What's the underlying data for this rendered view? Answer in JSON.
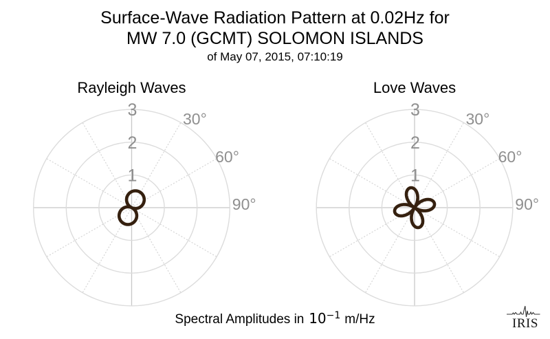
{
  "header": {
    "title_line1": "Surface-Wave Radiation Pattern at 0.02Hz for",
    "title_line2": "MW 7.0 (GCMT) SOLOMON ISLANDS",
    "subtitle": "of May 07, 2015, 07:10:19"
  },
  "caption": {
    "prefix": "Spectral Amplitudes in",
    "math_base": "10",
    "math_exponent": "−1",
    "suffix": "m/Hz"
  },
  "logo": {
    "text": "IRIS"
  },
  "colors": {
    "title": "#000000",
    "grid_circle": "#dcdcdc",
    "grid_axis": "#c8c8c8",
    "grid_dotted": "#d4d4d4",
    "tick_label": "#8f8f8f",
    "pattern_stroke": "#35200f"
  },
  "chart_data": [
    {
      "type": "line",
      "projection": "polar",
      "title": "Rayleigh Waves",
      "r_ticks": [
        1,
        2,
        3
      ],
      "r_tick_labels": [
        "1",
        "2",
        "3"
      ],
      "r_max": 3,
      "theta_grid_step_deg": 30,
      "theta_tick_labels": [
        {
          "angle_deg": 30,
          "label": "30°"
        },
        {
          "angle_deg": 60,
          "label": "60°"
        },
        {
          "angle_deg": 90,
          "label": "90°"
        }
      ],
      "pattern": {
        "shape": "rose r = A·|cos(k·(θ−θ0))|",
        "num_lobes": 2,
        "peak_amplitude": 0.54,
        "lobe_axis_azimuth_deg": 25
      }
    },
    {
      "type": "line",
      "projection": "polar",
      "title": "Love Waves",
      "r_ticks": [
        1,
        2,
        3
      ],
      "r_tick_labels": [
        "1",
        "2",
        "3"
      ],
      "r_max": 3,
      "theta_grid_step_deg": 30,
      "theta_tick_labels": [
        {
          "angle_deg": 30,
          "label": "30°"
        },
        {
          "angle_deg": 60,
          "label": "60°"
        },
        {
          "angle_deg": 90,
          "label": "90°"
        }
      ],
      "pattern": {
        "shape": "rose r = A·|cos(k·(θ−θ0))|",
        "num_lobes": 4,
        "peak_amplitude": 0.62,
        "lobe_axis_azimuth_deg": -12
      }
    }
  ]
}
